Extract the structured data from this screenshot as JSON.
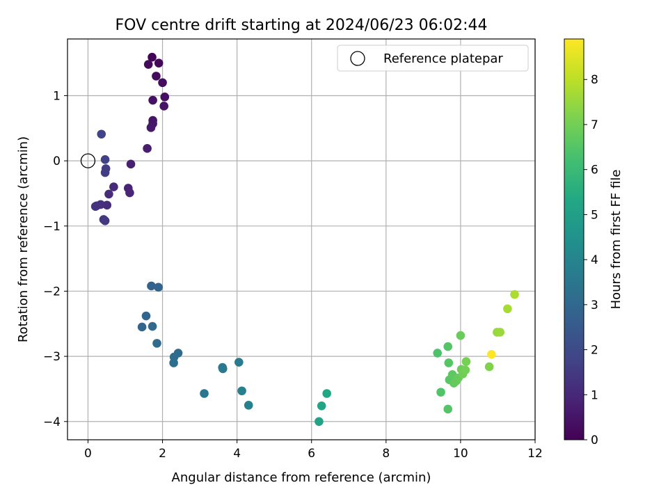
{
  "chart_data": {
    "type": "scatter",
    "title": "FOV centre drift starting at 2024/06/23 06:02:44",
    "xlabel": "Angular distance from reference (arcmin)",
    "ylabel": "Rotation from reference (arcmin)",
    "xlim": [
      -0.55,
      12
    ],
    "ylim": [
      -4.28,
      1.87
    ],
    "xticks": [
      0,
      2,
      4,
      6,
      8,
      10,
      12
    ],
    "yticks": [
      -4,
      -3,
      -2,
      -1,
      0,
      1
    ],
    "grid": true,
    "legend": {
      "label": "Reference platepar",
      "placement": "top-right"
    },
    "reference_point": {
      "x": 0,
      "y": 0
    },
    "colorbar": {
      "label": "Hours from first FF file",
      "colormap": "viridis",
      "range": [
        0,
        8.9
      ],
      "ticks": [
        0,
        1,
        2,
        3,
        4,
        5,
        6,
        7,
        8
      ]
    },
    "points": [
      {
        "x": 1.72,
        "y": 1.59,
        "c": 0.1
      },
      {
        "x": 1.9,
        "y": 1.5,
        "c": 0.15
      },
      {
        "x": 1.62,
        "y": 1.48,
        "c": 0.2
      },
      {
        "x": 1.83,
        "y": 1.3,
        "c": 0.25
      },
      {
        "x": 2.0,
        "y": 1.2,
        "c": 0.3
      },
      {
        "x": 2.06,
        "y": 0.98,
        "c": 0.35
      },
      {
        "x": 1.74,
        "y": 0.93,
        "c": 0.4
      },
      {
        "x": 2.04,
        "y": 0.84,
        "c": 0.45
      },
      {
        "x": 1.74,
        "y": 0.62,
        "c": 0.5
      },
      {
        "x": 1.74,
        "y": 0.57,
        "c": 0.55
      },
      {
        "x": 1.69,
        "y": 0.51,
        "c": 0.6
      },
      {
        "x": 1.59,
        "y": 0.19,
        "c": 0.7
      },
      {
        "x": 1.15,
        "y": -0.05,
        "c": 0.8
      },
      {
        "x": 1.08,
        "y": -0.42,
        "c": 0.9
      },
      {
        "x": 1.12,
        "y": -0.49,
        "c": 0.95
      },
      {
        "x": 0.69,
        "y": -0.4,
        "c": 1.05
      },
      {
        "x": 0.56,
        "y": -0.51,
        "c": 1.1
      },
      {
        "x": 0.51,
        "y": -0.68,
        "c": 1.15
      },
      {
        "x": 0.34,
        "y": -0.67,
        "c": 1.2
      },
      {
        "x": 0.23,
        "y": -0.69,
        "c": 1.25
      },
      {
        "x": 0.2,
        "y": -0.7,
        "c": 1.3
      },
      {
        "x": 0.42,
        "y": -0.9,
        "c": 1.4
      },
      {
        "x": 0.46,
        "y": -0.92,
        "c": 1.45
      },
      {
        "x": 0.48,
        "y": -0.12,
        "c": 1.55
      },
      {
        "x": 0.46,
        "y": -0.18,
        "c": 1.6
      },
      {
        "x": 0.46,
        "y": 0.02,
        "c": 1.7
      },
      {
        "x": 0.36,
        "y": 0.41,
        "c": 1.8
      },
      {
        "x": 1.7,
        "y": -1.92,
        "c": 2.8
      },
      {
        "x": 1.89,
        "y": -1.94,
        "c": 2.85
      },
      {
        "x": 1.56,
        "y": -2.38,
        "c": 2.9
      },
      {
        "x": 1.45,
        "y": -2.55,
        "c": 2.95
      },
      {
        "x": 1.73,
        "y": -2.54,
        "c": 3.0
      },
      {
        "x": 1.85,
        "y": -2.8,
        "c": 3.05
      },
      {
        "x": 2.42,
        "y": -2.95,
        "c": 3.1
      },
      {
        "x": 2.31,
        "y": -3.01,
        "c": 3.15
      },
      {
        "x": 2.3,
        "y": -3.1,
        "c": 3.2
      },
      {
        "x": 3.12,
        "y": -3.57,
        "c": 3.5
      },
      {
        "x": 3.61,
        "y": -3.17,
        "c": 3.55
      },
      {
        "x": 3.62,
        "y": -3.19,
        "c": 3.6
      },
      {
        "x": 4.05,
        "y": -3.09,
        "c": 3.7
      },
      {
        "x": 4.13,
        "y": -3.53,
        "c": 3.8
      },
      {
        "x": 4.31,
        "y": -3.75,
        "c": 3.85
      },
      {
        "x": 6.2,
        "y": -4.0,
        "c": 5.1
      },
      {
        "x": 6.27,
        "y": -3.76,
        "c": 5.2
      },
      {
        "x": 6.41,
        "y": -3.57,
        "c": 5.3
      },
      {
        "x": 9.38,
        "y": -2.95,
        "c": 6.4
      },
      {
        "x": 9.47,
        "y": -3.55,
        "c": 6.45
      },
      {
        "x": 9.66,
        "y": -2.85,
        "c": 6.5
      },
      {
        "x": 9.68,
        "y": -3.1,
        "c": 6.55
      },
      {
        "x": 9.66,
        "y": -3.81,
        "c": 6.5
      },
      {
        "x": 9.7,
        "y": -3.36,
        "c": 6.6
      },
      {
        "x": 9.78,
        "y": -3.28,
        "c": 6.65
      },
      {
        "x": 9.82,
        "y": -3.41,
        "c": 6.7
      },
      {
        "x": 9.88,
        "y": -3.38,
        "c": 6.75
      },
      {
        "x": 9.94,
        "y": -3.33,
        "c": 6.8
      },
      {
        "x": 10.0,
        "y": -2.68,
        "c": 6.85
      },
      {
        "x": 10.02,
        "y": -3.2,
        "c": 6.9
      },
      {
        "x": 10.06,
        "y": -3.27,
        "c": 6.95
      },
      {
        "x": 10.13,
        "y": -3.21,
        "c": 7.0
      },
      {
        "x": 10.15,
        "y": -3.08,
        "c": 7.05
      },
      {
        "x": 10.77,
        "y": -3.16,
        "c": 7.2
      },
      {
        "x": 10.98,
        "y": -2.63,
        "c": 7.5
      },
      {
        "x": 11.06,
        "y": -2.63,
        "c": 7.55
      },
      {
        "x": 11.26,
        "y": -2.27,
        "c": 7.7
      },
      {
        "x": 11.45,
        "y": -2.05,
        "c": 7.8
      },
      {
        "x": 10.83,
        "y": -2.97,
        "c": 8.9
      }
    ]
  }
}
